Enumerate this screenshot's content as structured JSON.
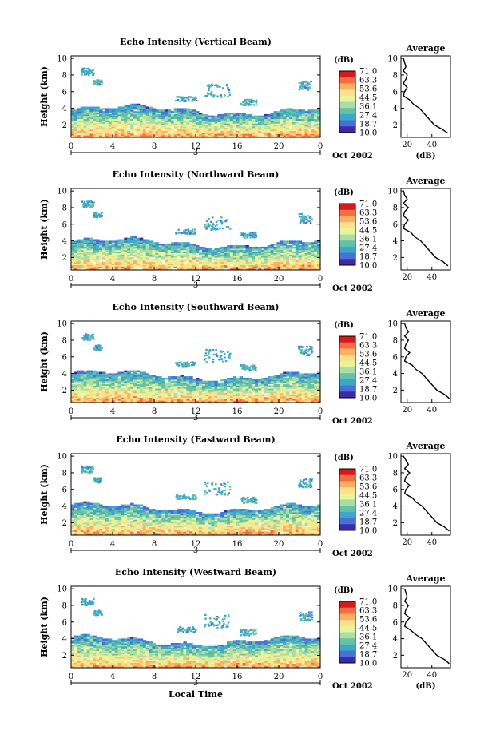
{
  "figure": {
    "x_axis_label": "Local Time",
    "date_label": "Oct 2002",
    "colorbar_unit": "(dB)",
    "colorbar_ticks": [
      "71.0",
      "63.3",
      "53.6",
      "44.5",
      "36.1",
      "27.4",
      "18.7",
      "10.0"
    ],
    "colorbar_colors": [
      "#d7191c",
      "#f46d43",
      "#fdae61",
      "#fee08b",
      "#e6f598",
      "#abdda4",
      "#66c2a5",
      "#3ba7c9",
      "#4a6fd8",
      "#3b2ba8"
    ]
  },
  "chart_data": [
    {
      "type": "heatmap",
      "title": "Echo Intensity (Vertical Beam)",
      "xlabel": "",
      "ylabel": "Height (km)",
      "x_ticks": [
        "0",
        "4",
        "8",
        "12",
        "16",
        "20",
        "0"
      ],
      "y_ticks": [
        "2",
        "4",
        "6",
        "8",
        "10"
      ],
      "xlim": [
        0,
        24
      ],
      "ylim": [
        0.5,
        10.3
      ],
      "day_marker": "3",
      "colorbar": {
        "label": "(dB)",
        "range": [
          10.0,
          71.0
        ]
      },
      "average_profile": {
        "title": "Average",
        "xlabel": "(dB)",
        "x_ticks": [
          "20",
          "40"
        ],
        "xlim": [
          15,
          55
        ],
        "x": [
          17,
          18,
          19,
          17,
          20,
          19,
          17,
          20,
          18,
          17,
          22,
          25,
          30,
          36,
          42,
          48,
          53
        ],
        "y": [
          10,
          9.5,
          9,
          8.5,
          8,
          7.5,
          7,
          6.5,
          6,
          5.5,
          5,
          4.5,
          4,
          3,
          2,
          1.5,
          1
        ]
      }
    },
    {
      "type": "heatmap",
      "title": "Echo Intensity (Northward Beam)",
      "xlabel": "",
      "ylabel": "Height (km)",
      "x_ticks": [
        "0",
        "4",
        "8",
        "12",
        "16",
        "20",
        "0"
      ],
      "y_ticks": [
        "2",
        "4",
        "6",
        "8",
        "10"
      ],
      "xlim": [
        0,
        24
      ],
      "ylim": [
        0.5,
        10.3
      ],
      "day_marker": "3",
      "colorbar": {
        "label": "(dB)",
        "range": [
          10.0,
          71.0
        ]
      },
      "average_profile": {
        "title": "Average",
        "xlabel": "",
        "x_ticks": [
          "20",
          "40"
        ],
        "xlim": [
          15,
          55
        ],
        "x": [
          17,
          18,
          20,
          17,
          21,
          18,
          17,
          21,
          18,
          17,
          23,
          26,
          31,
          37,
          43,
          49,
          53
        ],
        "y": [
          10,
          9.5,
          9,
          8.5,
          8,
          7.5,
          7,
          6.5,
          6,
          5.5,
          5,
          4.5,
          4,
          3,
          2,
          1.5,
          1
        ]
      }
    },
    {
      "type": "heatmap",
      "title": "Echo Intensity (Southward Beam)",
      "xlabel": "",
      "ylabel": "Height (km)",
      "x_ticks": [
        "0",
        "4",
        "8",
        "12",
        "16",
        "20",
        "0"
      ],
      "y_ticks": [
        "2",
        "4",
        "6",
        "8",
        "10"
      ],
      "xlim": [
        0,
        24
      ],
      "ylim": [
        0.5,
        10.3
      ],
      "day_marker": "3",
      "colorbar": {
        "label": "(dB)",
        "range": [
          10.0,
          71.0
        ]
      },
      "average_profile": {
        "title": "Average",
        "xlabel": "",
        "x_ticks": [
          "20",
          "40"
        ],
        "xlim": [
          15,
          55
        ],
        "x": [
          18,
          19,
          21,
          18,
          21,
          19,
          18,
          22,
          19,
          18,
          24,
          27,
          32,
          38,
          44,
          50,
          54
        ],
        "y": [
          10,
          9.5,
          9,
          8.5,
          8,
          7.5,
          7,
          6.5,
          6,
          5.5,
          5,
          4.5,
          4,
          3,
          2,
          1.5,
          1
        ]
      }
    },
    {
      "type": "heatmap",
      "title": "Echo Intensity (Eastward Beam)",
      "xlabel": "",
      "ylabel": "Height (km)",
      "x_ticks": [
        "0",
        "4",
        "8",
        "12",
        "16",
        "20",
        "0"
      ],
      "y_ticks": [
        "2",
        "4",
        "6",
        "8",
        "10"
      ],
      "xlim": [
        0,
        24
      ],
      "ylim": [
        0.5,
        10.3
      ],
      "day_marker": "3",
      "colorbar": {
        "label": "(dB)",
        "range": [
          10.0,
          71.0
        ]
      },
      "average_profile": {
        "title": "Average",
        "xlabel": "",
        "x_ticks": [
          "20",
          "40"
        ],
        "xlim": [
          15,
          55
        ],
        "x": [
          17,
          19,
          21,
          18,
          22,
          19,
          18,
          22,
          19,
          18,
          24,
          27,
          32,
          38,
          44,
          50,
          54
        ],
        "y": [
          10,
          9.5,
          9,
          8.5,
          8,
          7.5,
          7,
          6.5,
          6,
          5.5,
          5,
          4.5,
          4,
          3,
          2,
          1.5,
          1
        ]
      }
    },
    {
      "type": "heatmap",
      "title": "Echo Intensity (Westward Beam)",
      "xlabel": "Local Time",
      "ylabel": "Height (km)",
      "x_ticks": [
        "0",
        "4",
        "8",
        "12",
        "16",
        "20",
        "0"
      ],
      "y_ticks": [
        "2",
        "4",
        "6",
        "8",
        "10"
      ],
      "xlim": [
        0,
        24
      ],
      "ylim": [
        0.5,
        10.3
      ],
      "day_marker": "3",
      "colorbar": {
        "label": "(dB)",
        "range": [
          10.0,
          71.0
        ]
      },
      "average_profile": {
        "title": "Average",
        "xlabel": "(dB)",
        "x_ticks": [
          "20",
          "40"
        ],
        "xlim": [
          15,
          55
        ],
        "x": [
          18,
          19,
          20,
          18,
          21,
          19,
          18,
          22,
          19,
          18,
          23,
          27,
          32,
          38,
          44,
          50,
          54
        ],
        "y": [
          10,
          9.5,
          9,
          8.5,
          8,
          7.5,
          7,
          6.5,
          6,
          5.5,
          5,
          4.5,
          4,
          3,
          2,
          1.5,
          1
        ]
      }
    }
  ]
}
